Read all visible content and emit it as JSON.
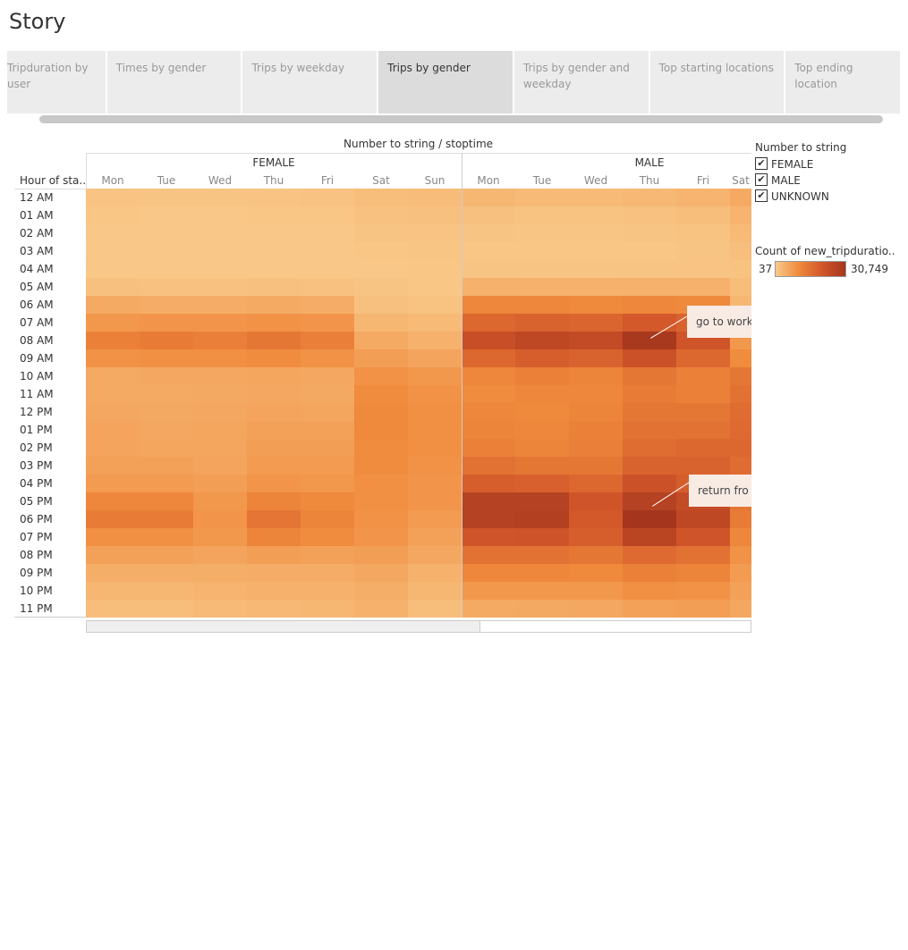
{
  "story": {
    "title": "Story",
    "tabs": [
      {
        "label": "Tripduration by user",
        "active": false
      },
      {
        "label": "Times by gender",
        "active": false
      },
      {
        "label": "Trips by weekday",
        "active": false
      },
      {
        "label": "Trips by gender",
        "active": true
      },
      {
        "label": "Trips by gender and weekday",
        "active": false
      },
      {
        "label": "Top starting locations",
        "active": false
      },
      {
        "label": "Top ending location",
        "active": false
      }
    ]
  },
  "view": {
    "header_title": "Number to string / stoptime",
    "row_header": "Hour of sta..",
    "groups": [
      "FEMALE",
      "MALE"
    ],
    "days": [
      "Mon",
      "Tue",
      "Wed",
      "Thu",
      "Fri",
      "Sat",
      "Sun"
    ],
    "annotations": {
      "morning": "go to work",
      "evening": "return fro"
    }
  },
  "legend": {
    "filter_title": "Number to string",
    "filter_items": [
      {
        "label": "FEMALE",
        "checked": true
      },
      {
        "label": "MALE",
        "checked": true
      },
      {
        "label": "UNKNOWN",
        "checked": true
      }
    ],
    "color_title": "Count of new_tripduratio..",
    "color_min": "37",
    "color_max": "30,749",
    "color_stops": [
      "#f9c98a",
      "#f08a3c",
      "#d2562a",
      "#a5361d"
    ]
  },
  "chart_data": {
    "type": "heatmap",
    "title": "Number to string / stoptime",
    "rows": [
      "12 AM",
      "01 AM",
      "02 AM",
      "03 AM",
      "04 AM",
      "05 AM",
      "06 AM",
      "07 AM",
      "08 AM",
      "09 AM",
      "10 AM",
      "11 AM",
      "12 PM",
      "01 PM",
      "02 PM",
      "03 PM",
      "04 PM",
      "05 PM",
      "06 PM",
      "07 PM",
      "08 PM",
      "09 PM",
      "10 PM",
      "11 PM"
    ],
    "columns": [
      {
        "group": "FEMALE",
        "day": "Mon"
      },
      {
        "group": "FEMALE",
        "day": "Tue"
      },
      {
        "group": "FEMALE",
        "day": "Wed"
      },
      {
        "group": "FEMALE",
        "day": "Thu"
      },
      {
        "group": "FEMALE",
        "day": "Fri"
      },
      {
        "group": "FEMALE",
        "day": "Sat"
      },
      {
        "group": "FEMALE",
        "day": "Sun"
      },
      {
        "group": "MALE",
        "day": "Mon"
      },
      {
        "group": "MALE",
        "day": "Tue"
      },
      {
        "group": "MALE",
        "day": "Wed"
      },
      {
        "group": "MALE",
        "day": "Thu"
      },
      {
        "group": "MALE",
        "day": "Fri"
      },
      {
        "group": "MALE",
        "day": "Sat"
      }
    ],
    "color_range": [
      37,
      30749
    ],
    "values": [
      [
        1000,
        900,
        900,
        1000,
        1100,
        2000,
        2200,
        3000,
        2500,
        2500,
        2800,
        3500,
        5000
      ],
      [
        500,
        400,
        400,
        500,
        600,
        1300,
        1500,
        1500,
        1200,
        1200,
        1400,
        2000,
        3500
      ],
      [
        300,
        250,
        250,
        300,
        350,
        900,
        1000,
        900,
        700,
        700,
        800,
        1200,
        2500
      ],
      [
        200,
        150,
        150,
        200,
        250,
        600,
        700,
        600,
        500,
        500,
        600,
        800,
        1800
      ],
      [
        300,
        250,
        250,
        300,
        300,
        400,
        500,
        900,
        800,
        800,
        900,
        1000,
        1200
      ],
      [
        1500,
        1400,
        1400,
        1500,
        1400,
        800,
        600,
        4000,
        3800,
        3800,
        4000,
        3800,
        2000
      ],
      [
        5000,
        4800,
        4700,
        5000,
        4800,
        1500,
        1200,
        11000,
        10800,
        10500,
        11000,
        10500,
        3000
      ],
      [
        8000,
        8500,
        8500,
        9000,
        8500,
        3000,
        2500,
        17000,
        18000,
        17500,
        20000,
        18000,
        5000
      ],
      [
        12000,
        13000,
        12500,
        14000,
        12500,
        5000,
        4000,
        23000,
        25000,
        24000,
        30000,
        21000,
        8000
      ],
      [
        9000,
        9500,
        9500,
        10000,
        9000,
        7000,
        6000,
        17000,
        19000,
        18000,
        22000,
        17000,
        10000
      ],
      [
        5000,
        5500,
        5500,
        5800,
        5500,
        9000,
        8000,
        11000,
        12000,
        11500,
        14000,
        12000,
        14000
      ],
      [
        5000,
        5000,
        5200,
        5500,
        5200,
        10000,
        9000,
        10000,
        11000,
        11000,
        13000,
        12000,
        15000
      ],
      [
        5500,
        5200,
        5500,
        6000,
        5800,
        10500,
        9500,
        11000,
        10500,
        11500,
        14000,
        14000,
        16000
      ],
      [
        6000,
        5500,
        5800,
        6500,
        6500,
        10500,
        9500,
        11500,
        11000,
        12000,
        15000,
        15000,
        16500
      ],
      [
        6000,
        5800,
        5800,
        7000,
        7000,
        10000,
        9500,
        12000,
        11500,
        12500,
        16000,
        17000,
        17000
      ],
      [
        6500,
        6500,
        6000,
        7500,
        7500,
        10000,
        9000,
        15000,
        14000,
        14000,
        18000,
        18000,
        16000
      ],
      [
        7500,
        7500,
        7000,
        8500,
        8000,
        9500,
        8500,
        19000,
        18500,
        17000,
        22000,
        19000,
        15000
      ],
      [
        11000,
        11000,
        8000,
        11500,
        10500,
        9500,
        8500,
        27000,
        27000,
        21000,
        27000,
        24000,
        14000
      ],
      [
        13000,
        13000,
        8500,
        14500,
        11500,
        9000,
        7500,
        27000,
        27500,
        20000,
        30749,
        25000,
        13000
      ],
      [
        9500,
        9500,
        8000,
        11500,
        10000,
        8500,
        6500,
        21000,
        21500,
        19000,
        26000,
        21000,
        11000
      ],
      [
        6500,
        6500,
        6000,
        7000,
        6500,
        7000,
        5500,
        15000,
        15000,
        14000,
        16500,
        15000,
        9000
      ],
      [
        4500,
        4500,
        4500,
        4800,
        4800,
        5500,
        4000,
        11000,
        11000,
        10500,
        12000,
        11500,
        7500
      ],
      [
        3000,
        3000,
        3500,
        3800,
        3800,
        4500,
        3000,
        8000,
        8000,
        8000,
        9500,
        9000,
        6500
      ],
      [
        2000,
        2000,
        2500,
        2800,
        3000,
        3800,
        2000,
        5000,
        5200,
        5500,
        6500,
        7000,
        5500
      ]
    ]
  }
}
